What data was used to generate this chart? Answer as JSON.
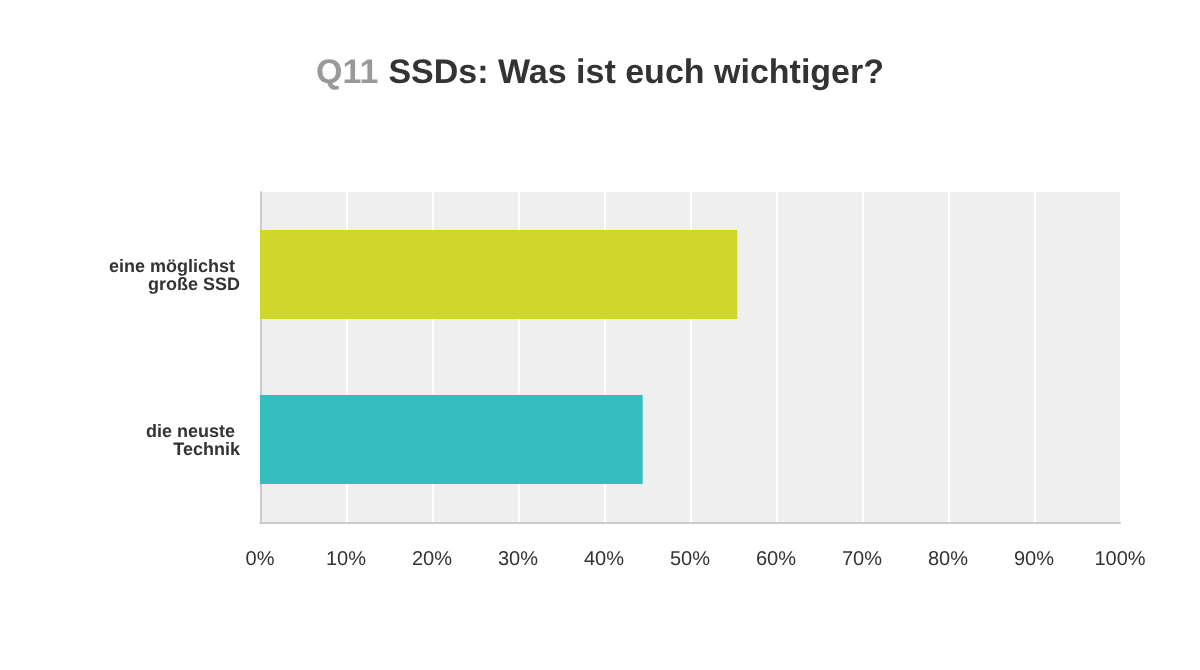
{
  "chart_data": {
    "type": "bar",
    "orientation": "horizontal",
    "title": "Q11 SSDs: Was ist euch wichtiger?",
    "categories": [
      "eine möglichst große SSD",
      "die neuste Technik"
    ],
    "values": [
      55.5,
      44.5
    ],
    "colors": [
      "#d0d62a",
      "#34bec0"
    ],
    "xlim": [
      0,
      100
    ],
    "xticks": [
      {
        "value": 0,
        "label": "0%"
      },
      {
        "value": 10,
        "label": "10%"
      },
      {
        "value": 20,
        "label": "20%"
      },
      {
        "value": 30,
        "label": "30%"
      },
      {
        "value": 40,
        "label": "40%"
      },
      {
        "value": 50,
        "label": "50%"
      },
      {
        "value": 60,
        "label": "60%"
      },
      {
        "value": 70,
        "label": "70%"
      },
      {
        "value": 80,
        "label": "80%"
      },
      {
        "value": 90,
        "label": "90%"
      },
      {
        "value": 100,
        "label": "100%"
      }
    ],
    "grid": "x"
  }
}
